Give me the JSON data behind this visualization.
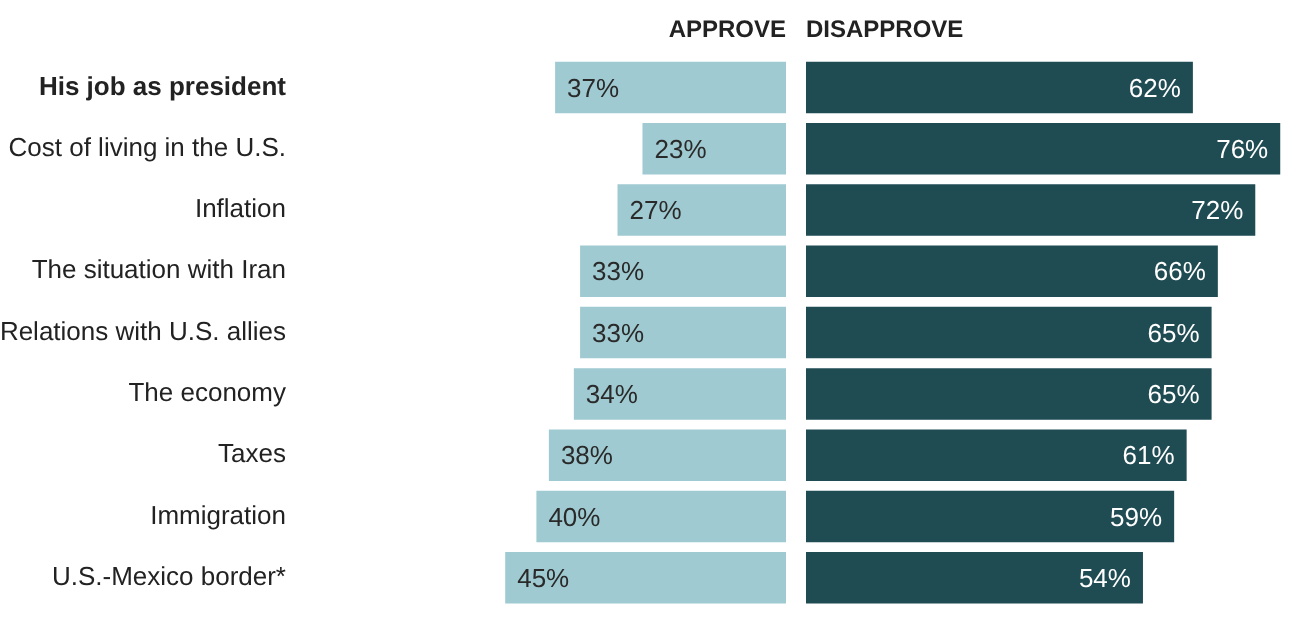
{
  "chart_data": [
    {
      "type": "bar",
      "orientation": "horizontal",
      "title": "APPROVE",
      "categories": [
        "His job as president",
        "Cost of living in the U.S.",
        "Inflation",
        "The situation with Iran",
        "Relations with U.S. allies",
        "The economy",
        "Taxes",
        "Immigration",
        "U.S.-Mexico border*"
      ],
      "series": [
        {
          "name": null,
          "color": "#9fcad1",
          "values": [
            37,
            23,
            27,
            33,
            33,
            34,
            38,
            40,
            45
          ],
          "value_labels": [
            "37%",
            "23%",
            "27%",
            "33%",
            "33%",
            "34%",
            "38%",
            "40%",
            "45%"
          ]
        }
      ],
      "legend": false
    },
    {
      "type": "bar",
      "orientation": "horizontal",
      "title": "DISAPPROVE",
      "categories": [
        null,
        null,
        null,
        null,
        null,
        null,
        null,
        null,
        null
      ],
      "series": [
        {
          "name": null,
          "color": "#1f4b53",
          "values": [
            62,
            76,
            72,
            66,
            65,
            65,
            61,
            59,
            54
          ],
          "value_labels": [
            "62%",
            "76%",
            "72%",
            "66%",
            "65%",
            "65%",
            "61%",
            "59%",
            "54%"
          ]
        }
      ],
      "legend": false
    }
  ]
}
